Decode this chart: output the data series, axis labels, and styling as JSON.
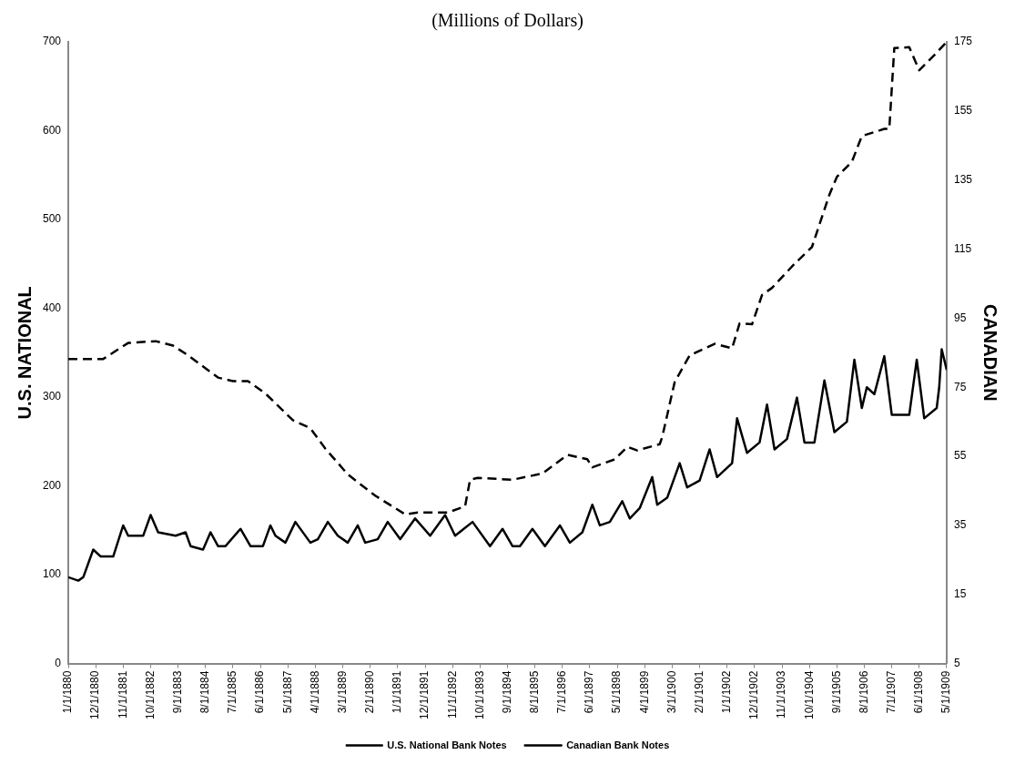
{
  "chart_data": {
    "type": "line",
    "title": "(Millions of Dollars)",
    "ylabel": "U.S. NATIONAL",
    "y2label": "CANADIAN",
    "xlim": [
      "1880-01",
      "1909-05"
    ],
    "xticks": [
      {
        "value": "1880-01",
        "label": "1/1/1880"
      },
      {
        "value": "1880-12",
        "label": "12/1/1880"
      },
      {
        "value": "1881-11",
        "label": "11/1/1881"
      },
      {
        "value": "1882-10",
        "label": "10/1/1882"
      },
      {
        "value": "1883-09",
        "label": "9/1/1883"
      },
      {
        "value": "1884-08",
        "label": "8/1/1884"
      },
      {
        "value": "1885-07",
        "label": "7/1/1885"
      },
      {
        "value": "1886-06",
        "label": "6/1/1886"
      },
      {
        "value": "1887-05",
        "label": "5/1/1887"
      },
      {
        "value": "1888-04",
        "label": "4/1/1888"
      },
      {
        "value": "1889-03",
        "label": "3/1/1889"
      },
      {
        "value": "1890-02",
        "label": "2/1/1890"
      },
      {
        "value": "1891-01",
        "label": "1/1/1891"
      },
      {
        "value": "1891-12",
        "label": "12/1/1891"
      },
      {
        "value": "1892-11",
        "label": "11/1/1892"
      },
      {
        "value": "1893-10",
        "label": "10/1/1893"
      },
      {
        "value": "1894-09",
        "label": "9/1/1894"
      },
      {
        "value": "1895-08",
        "label": "8/1/1895"
      },
      {
        "value": "1896-07",
        "label": "7/1/1896"
      },
      {
        "value": "1897-06",
        "label": "6/1/1897"
      },
      {
        "value": "1898-05",
        "label": "5/1/1898"
      },
      {
        "value": "1899-04",
        "label": "4/1/1899"
      },
      {
        "value": "1900-03",
        "label": "3/1/1900"
      },
      {
        "value": "1901-02",
        "label": "2/1/1901"
      },
      {
        "value": "1902-01",
        "label": "1/1/1902"
      },
      {
        "value": "1902-12",
        "label": "12/1/1902"
      },
      {
        "value": "1903-11",
        "label": "11/1/1903"
      },
      {
        "value": "1904-10",
        "label": "10/1/1904"
      },
      {
        "value": "1905-09",
        "label": "9/1/1905"
      },
      {
        "value": "1906-08",
        "label": "8/1/1906"
      },
      {
        "value": "1907-07",
        "label": "7/1/1907"
      },
      {
        "value": "1908-06",
        "label": "6/1/1908"
      },
      {
        "value": "1909-05",
        "label": "5/1/1909"
      }
    ],
    "ylim": [
      0,
      700
    ],
    "yticks": [
      0,
      100,
      200,
      300,
      400,
      500,
      600,
      700
    ],
    "y2lim": [
      -5,
      175
    ],
    "y2ticks": [
      {
        "value": -5,
        "label": "5"
      },
      15,
      35,
      55,
      75,
      95,
      115,
      135,
      155,
      175
    ],
    "grid": false,
    "legend": "bottom",
    "marker": "none",
    "series": [
      {
        "name": "U.S. National Bank Notes",
        "color": "#000000",
        "line_style": "dashed",
        "x": [
          "1880-01",
          "1881-03",
          "1882-01",
          "1882-12",
          "1883-07",
          "1884-01",
          "1885-01",
          "1885-07",
          "1886-01",
          "1886-08",
          "1887-07",
          "1888-02",
          "1888-08",
          "1889-05",
          "1890-04",
          "1891-04",
          "1891-09",
          "1892-09",
          "1893-04",
          "1893-06",
          "1893-09",
          "1894-11",
          "1895-11",
          "1896-09",
          "1897-05",
          "1897-07",
          "1898-04",
          "1898-09",
          "1899-01",
          "1899-10",
          "1899-11",
          "1900-04",
          "1900-10",
          "1901-08",
          "1902-03",
          "1902-06",
          "1902-11",
          "1903-03",
          "1903-07",
          "1904-04",
          "1904-11",
          "1905-06",
          "1905-09",
          "1906-03",
          "1906-07",
          "1907-04",
          "1907-06",
          "1907-08",
          "1908-02",
          "1908-06",
          "1908-12",
          "1909-05"
        ],
        "values": [
          343,
          343,
          361,
          363,
          358,
          347,
          322,
          318,
          318,
          304,
          274,
          265,
          242,
          213,
          189,
          168,
          170,
          170,
          177,
          207,
          209,
          207,
          214,
          235,
          230,
          221,
          230,
          244,
          240,
          247,
          255,
          317,
          347,
          360,
          355,
          383,
          382,
          415,
          423,
          450,
          469,
          528,
          548,
          565,
          594,
          602,
          602,
          693,
          694,
          668,
          685,
          700
        ]
      },
      {
        "name": "Canadian Bank Notes",
        "color": "#000000",
        "line_style": "solid",
        "axis": "y2",
        "x": [
          "1880-01",
          "1880-05",
          "1880-07",
          "1880-11",
          "1881-02",
          "1881-07",
          "1881-11",
          "1882-01",
          "1882-07",
          "1882-10",
          "1883-01",
          "1883-08",
          "1883-12",
          "1884-02",
          "1884-07",
          "1884-10",
          "1885-01",
          "1885-04",
          "1885-10",
          "1886-02",
          "1886-07",
          "1886-10",
          "1886-12",
          "1887-04",
          "1887-08",
          "1888-02",
          "1888-05",
          "1888-09",
          "1889-01",
          "1889-05",
          "1889-09",
          "1889-12",
          "1890-05",
          "1890-09",
          "1891-02",
          "1891-08",
          "1892-02",
          "1892-08",
          "1892-12",
          "1893-07",
          "1894-02",
          "1894-07",
          "1894-11",
          "1895-02",
          "1895-07",
          "1895-12",
          "1896-06",
          "1896-10",
          "1897-03",
          "1897-07",
          "1897-10",
          "1898-02",
          "1898-07",
          "1898-10",
          "1899-02",
          "1899-07",
          "1899-09",
          "1900-01",
          "1900-06",
          "1900-09",
          "1901-02",
          "1901-06",
          "1901-09",
          "1902-03",
          "1902-05",
          "1902-09",
          "1903-02",
          "1903-05",
          "1903-08",
          "1904-01",
          "1904-05",
          "1904-08",
          "1904-12",
          "1905-04",
          "1905-08",
          "1906-01",
          "1906-04",
          "1906-07",
          "1906-09",
          "1906-12",
          "1907-04",
          "1907-07",
          "1908-02",
          "1908-05",
          "1908-08",
          "1909-01",
          "1909-02",
          "1909-03",
          "1909-05"
        ],
        "values": [
          20,
          19,
          20,
          28,
          26,
          26,
          35,
          32,
          32,
          38,
          33,
          32,
          33,
          29,
          28,
          33,
          29,
          29,
          34,
          29,
          29,
          35,
          32,
          30,
          36,
          30,
          31,
          36,
          32,
          30,
          35,
          30,
          31,
          36,
          31,
          37,
          32,
          38,
          32,
          36,
          29,
          34,
          29,
          29,
          34,
          29,
          35,
          30,
          33,
          41,
          35,
          36,
          42,
          37,
          40,
          49,
          41,
          43,
          53,
          46,
          48,
          57,
          49,
          53,
          66,
          56,
          59,
          70,
          57,
          60,
          72,
          59,
          59,
          77,
          62,
          65,
          83,
          69,
          75,
          73,
          84,
          67,
          67,
          83,
          66,
          69,
          75,
          86,
          80
        ]
      }
    ]
  }
}
